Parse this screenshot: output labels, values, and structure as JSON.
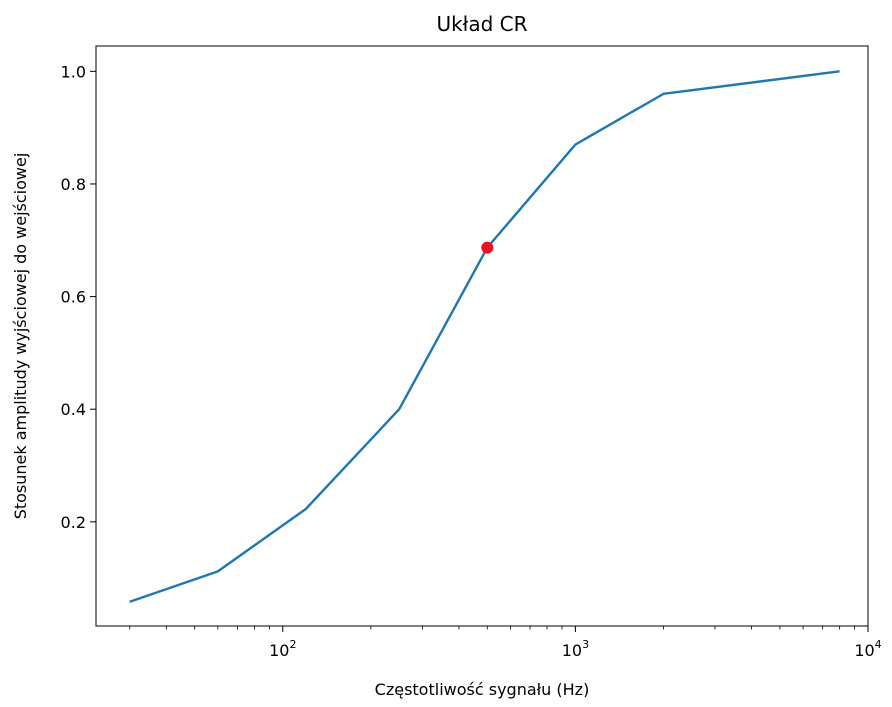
{
  "chart_data": {
    "type": "line",
    "title": "Układ CR",
    "xlabel": "Częstotliwość sygnału (Hz)",
    "ylabel": "Stosunek amplitudy wyjściowej do wejściowej",
    "x_scale": "log",
    "xlim": [
      23,
      10000
    ],
    "ylim": [
      0.015,
      1.045
    ],
    "x_ticks": [
      {
        "value": 100,
        "base": "10",
        "exp": "2"
      },
      {
        "value": 1000,
        "base": "10",
        "exp": "3"
      },
      {
        "value": 10000,
        "base": "10",
        "exp": "4"
      }
    ],
    "y_ticks": [
      {
        "value": 0.2,
        "label": "0.2"
      },
      {
        "value": 0.4,
        "label": "0.4"
      },
      {
        "value": 0.6,
        "label": "0.6"
      },
      {
        "value": 0.8,
        "label": "0.8"
      },
      {
        "value": 1.0,
        "label": "1.0"
      }
    ],
    "grid": false,
    "series": [
      {
        "color": "#1f77b4",
        "x": [
          30,
          60,
          120,
          250,
          500,
          1000,
          2000,
          8000
        ],
        "y": [
          0.058,
          0.112,
          0.223,
          0.4,
          0.687,
          0.87,
          0.96,
          1.0
        ]
      }
    ],
    "highlight_point": {
      "x": 500,
      "y": 0.687,
      "color": "#e8141d"
    }
  }
}
